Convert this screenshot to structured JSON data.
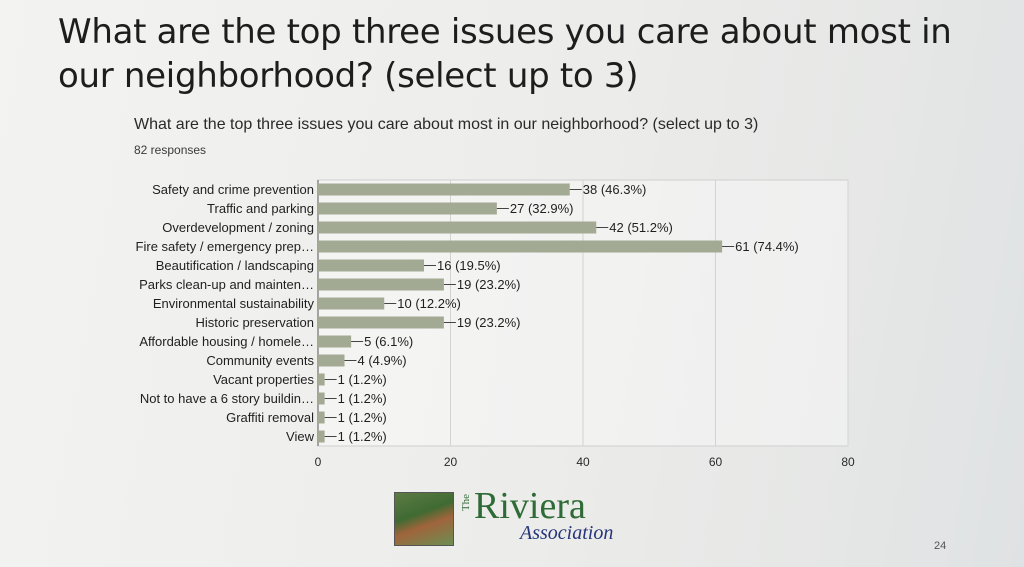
{
  "slide": {
    "title": "What are the top three issues you care about most in our neighborhood? (select up to 3)",
    "number": "24"
  },
  "chart_data": {
    "type": "bar",
    "orientation": "horizontal",
    "title": "What are the top three issues you care about most in our neighborhood? (select up to 3)",
    "subtitle": "82 responses",
    "categories": [
      "Safety and crime prevention",
      "Traffic and parking",
      "Overdevelopment / zoning",
      "Fire safety / emergency prep…",
      "Beautification / landscaping",
      "Parks clean-up and mainten…",
      "Environmental sustainability",
      "Historic preservation",
      "Affordable housing / homele…",
      "Community events",
      "Vacant properties",
      "Not to have a 6 story buildin…",
      "Graffiti removal",
      "View"
    ],
    "values": [
      38,
      27,
      42,
      61,
      16,
      19,
      10,
      19,
      5,
      4,
      1,
      1,
      1,
      1
    ],
    "data_labels": [
      "38 (46.3%)",
      "27 (32.9%)",
      "42 (51.2%)",
      "61 (74.4%)",
      "16 (19.5%)",
      "19 (23.2%)",
      "10 (12.2%)",
      "19 (23.2%)",
      "5 (6.1%)",
      "4 (4.9%)",
      "1 (1.2%)",
      "1 (1.2%)",
      "1 (1.2%)",
      "1 (1.2%)"
    ],
    "xlim": [
      0,
      80
    ],
    "xticks": [
      "0",
      "20",
      "40",
      "60",
      "80"
    ],
    "grid": true,
    "bar_color": "#a3aa94"
  },
  "logo": {
    "the": "The",
    "name": "Riviera",
    "sub": "Association"
  }
}
